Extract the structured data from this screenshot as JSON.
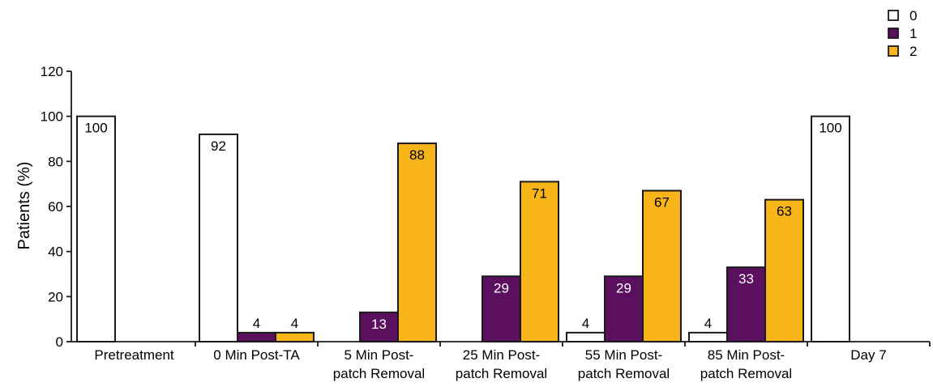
{
  "chart_data": {
    "type": "bar",
    "title": "",
    "xlabel": "",
    "ylabel": "Patients (%)",
    "ylim": [
      0,
      120
    ],
    "yticks": [
      0,
      20,
      40,
      60,
      80,
      100,
      120
    ],
    "grid": false,
    "legend_position": "top-right",
    "categories": [
      [
        "Pretreatment"
      ],
      [
        "0 Min Post-TA"
      ],
      [
        "5 Min Post-",
        "patch Removal"
      ],
      [
        "25 Min Post-",
        "patch Removal"
      ],
      [
        "55 Min Post-",
        "patch Removal"
      ],
      [
        "85 Min Post-",
        "patch Removal"
      ],
      [
        "Day 7"
      ]
    ],
    "series": [
      {
        "name": "0",
        "color": "#ffffff",
        "label_color": "#000000",
        "values": [
          100,
          92,
          0,
          0,
          4,
          4,
          100
        ],
        "labels": [
          "100",
          "92",
          "",
          "",
          "4",
          "4",
          "100"
        ]
      },
      {
        "name": "1",
        "color": "#5b0f5f",
        "label_color": "#ffffff",
        "values": [
          0,
          4,
          13,
          29,
          29,
          33,
          0
        ],
        "labels": [
          "",
          "4",
          "13",
          "29",
          "29",
          "33",
          ""
        ]
      },
      {
        "name": "2",
        "color": "#f7b519",
        "label_color": "#000000",
        "values": [
          0,
          4,
          88,
          71,
          67,
          63,
          0
        ],
        "labels": [
          "",
          "4",
          "88",
          "71",
          "67",
          "63",
          ""
        ]
      }
    ]
  }
}
